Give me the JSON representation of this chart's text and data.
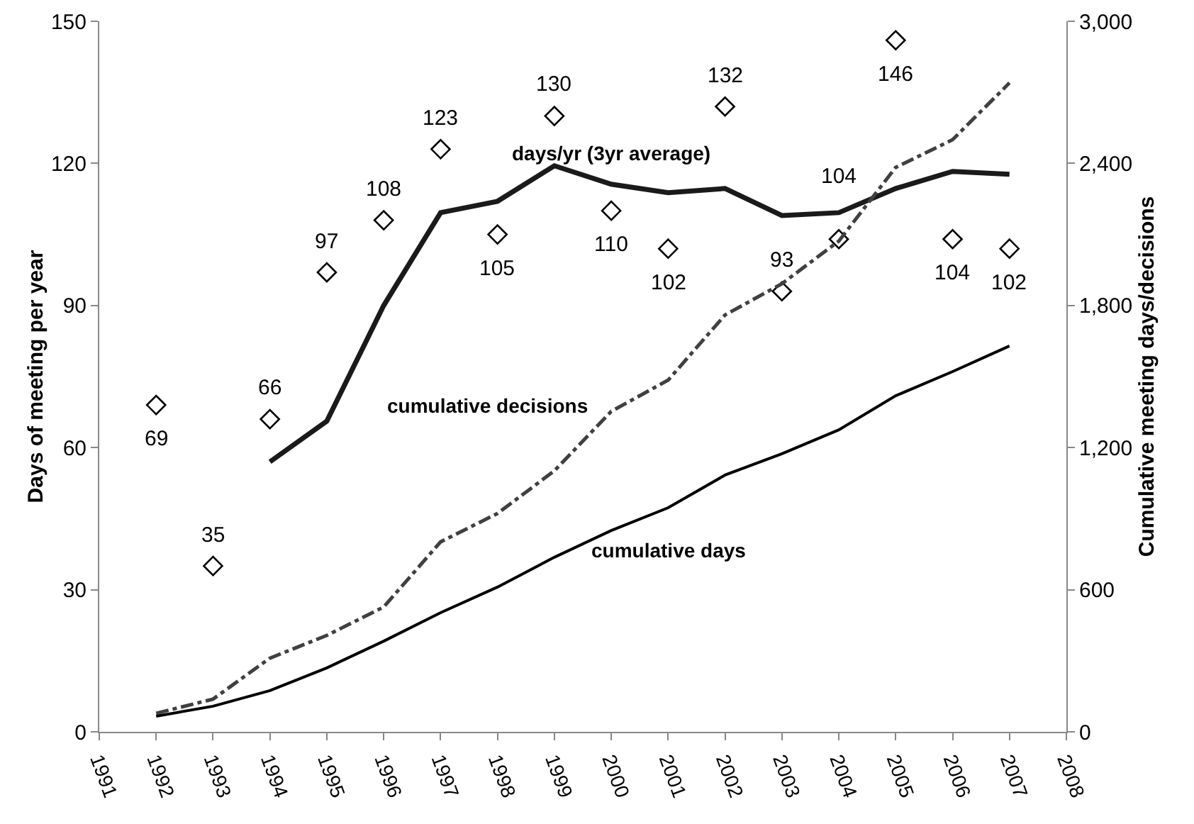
{
  "chart_data": {
    "type": "line",
    "ylabel": "Days of meeting per year",
    "y2label": "Cumulative meeting days/decisions",
    "x": [
      1992,
      1993,
      1994,
      1995,
      1996,
      1997,
      1998,
      1999,
      2000,
      2001,
      2002,
      2003,
      2004,
      2005,
      2006,
      2007
    ],
    "series": [
      {
        "type": "scatter",
        "color": "#000000",
        "marker": "diamond",
        "data_labels": true,
        "values": [
          69,
          35,
          66,
          97,
          108,
          123,
          105,
          130,
          110,
          102,
          132,
          93,
          104,
          146,
          104,
          102
        ]
      },
      {
        "type": "line",
        "name": "days/yr (3yr average)",
        "color": "#1a1a1a",
        "marker": "none",
        "line_style": "solid",
        "values": [
          null,
          null,
          57,
          65.6,
          90,
          109.6,
          112,
          119.5,
          115.6,
          113.8,
          114.7,
          109,
          109.6,
          114.7,
          118.3,
          117.7
        ]
      },
      {
        "type": "line",
        "name": "cumulative decisions",
        "axis": "y2",
        "color": "#404040",
        "marker": "none",
        "line_style": "dashed",
        "values": [
          78,
          138,
          311,
          407,
          527,
          802,
          922,
          1102,
          1353,
          1485,
          1760,
          1892,
          2072,
          2383,
          2500,
          2740
        ]
      },
      {
        "type": "line",
        "name": "cumulative days",
        "axis": "y2",
        "color": "#000000",
        "marker": "none",
        "line_style": "solid",
        "values": [
          66,
          108,
          174,
          270,
          383,
          503,
          611,
          737,
          850,
          946,
          1084,
          1174,
          1275,
          1419,
          1521,
          1629
        ]
      }
    ],
    "xlim": [
      1991,
      2008
    ],
    "xticks": [
      1991,
      1992,
      1993,
      1994,
      1995,
      1996,
      1997,
      1998,
      1999,
      2000,
      2001,
      2002,
      2003,
      2004,
      2005,
      2006,
      2007,
      2008
    ],
    "ylim": [
      0,
      150
    ],
    "yticks": [
      0,
      30,
      60,
      90,
      120,
      150
    ],
    "y2lim": [
      0,
      3000
    ],
    "y2ticks": [
      0,
      {
        "value": 600,
        "label": "600"
      },
      {
        "value": 1200,
        "label": "1,200"
      },
      {
        "value": 1800,
        "label": "1,800"
      },
      {
        "value": 2400,
        "label": "2,400"
      },
      {
        "value": 3000,
        "label": "3,000"
      }
    ],
    "grid": false
  }
}
